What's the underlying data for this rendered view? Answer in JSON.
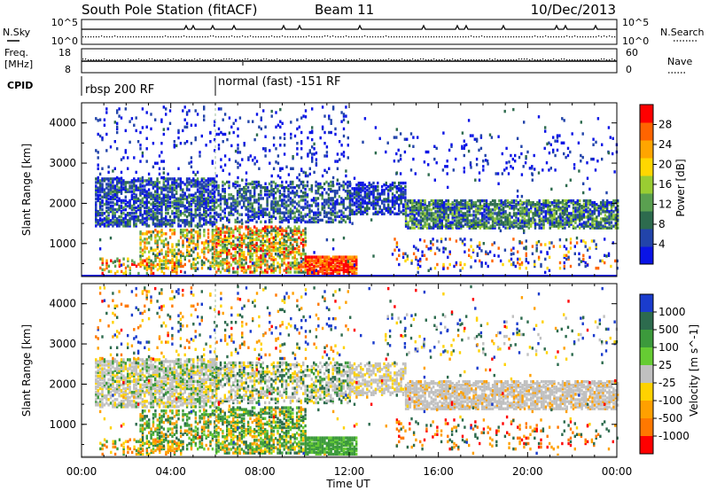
{
  "header": {
    "station": "South Pole Station (fitACF)",
    "beam": "Beam 11",
    "date": "10/Dec/2013"
  },
  "strips": {
    "nsky_label": "N.Sky",
    "nsearch_label": "N.Search",
    "freq_label_1": "Freq.",
    "freq_label_2": "[MHz]",
    "nave_label": "Nave",
    "cpid_label": "CPID",
    "noise_ticks": [
      "10^5",
      "10^0"
    ],
    "freq_ticks": [
      "18",
      "8"
    ],
    "nave_ticks": [
      "60",
      "0"
    ]
  },
  "cpid_segments": [
    {
      "label": "rbsp 200 RF",
      "start_hour": 0
    },
    {
      "label": "normal (fast) -151 RF",
      "start_hour": 6
    }
  ],
  "chart_data": [
    {
      "type": "heatmap",
      "title": "",
      "xlabel": "Time UT",
      "ylabel": "Slant Range [km]",
      "xlim": [
        0,
        24
      ],
      "ylim": [
        180,
        4500
      ],
      "x_ticks": [
        "00:00",
        "04:00",
        "08:00",
        "12:00",
        "16:00",
        "20:00",
        "00:00"
      ],
      "y_ticks": [
        "1000",
        "2000",
        "3000",
        "4000"
      ],
      "colorbar": {
        "label": "Power [dB]",
        "ticks": [
          "4",
          "8",
          "12",
          "16",
          "20",
          "24",
          "28"
        ],
        "range": [
          0,
          30
        ],
        "colors": [
          "#0a14e6",
          "#2244aa",
          "#2d6b4e",
          "#5aa050",
          "#9acd32",
          "#ffd700",
          "#ffa500",
          "#ff6400",
          "#ff0000"
        ]
      },
      "features": [
        {
          "region": "main band 1500-2500 km",
          "hours": [
            0.5,
            24
          ],
          "power_db": "4-16"
        },
        {
          "region": "near range 200-1300 km",
          "hours": [
            2.5,
            12
          ],
          "power_db": "12-28"
        },
        {
          "region": "near range peak 300-600 km",
          "hours": [
            10,
            12.3
          ],
          "power_db": "24-30"
        }
      ]
    },
    {
      "type": "heatmap",
      "title": "",
      "xlabel": "Time UT",
      "ylabel": "Slant Range [km]",
      "xlim": [
        0,
        24
      ],
      "ylim": [
        180,
        4500
      ],
      "x_ticks": [
        "00:00",
        "04:00",
        "08:00",
        "12:00",
        "16:00",
        "20:00",
        "00:00"
      ],
      "y_ticks": [
        "1000",
        "2000",
        "3000",
        "4000"
      ],
      "colorbar": {
        "label": "Velocity [m s^-1]",
        "ticks": [
          "1000",
          "500",
          "100",
          "25",
          "-25",
          "-100",
          "-500",
          "-1000"
        ],
        "colors": [
          "#1a3ccd",
          "#2d6b4e",
          "#3c9a3c",
          "#66cc33",
          "#c0c0c0",
          "#ffd200",
          "#ffa000",
          "#ff7800",
          "#ff0000"
        ]
      },
      "features": [
        {
          "region": "ground scatter band 1500-2500 km",
          "hours": [
            0,
            24
          ],
          "velocity": "-25 to 25"
        },
        {
          "region": "near range 300-1500 km",
          "hours": [
            2.5,
            12
          ],
          "velocity": "100-500"
        }
      ]
    }
  ]
}
